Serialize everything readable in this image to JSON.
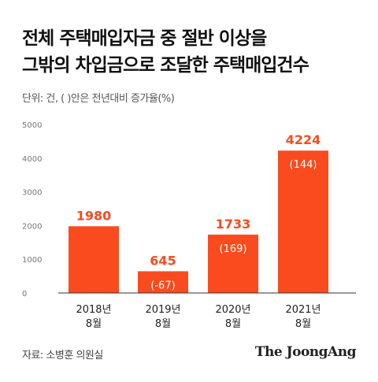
{
  "title_lines": [
    "전체 주택매입자금 중 절반 이상을",
    "그밖의 차입금으로 조달한 주택매입건수"
  ],
  "unit_note": "단위: 건, ( )안은 전년대비 증가율(%)",
  "source": "자료: 소병훈 의원실",
  "logo": "The JoongAng",
  "colors": {
    "bar": "#fa4b1e",
    "value_label": "#fa4b1e",
    "paren_label": "#ffffff",
    "axis": "#333333",
    "tick": "#777777"
  },
  "chart_data": {
    "type": "bar",
    "title": "전체 주택매입자금 중 절반 이상을 그밖의 차입금으로 조달한 주택매입건수",
    "categories": [
      [
        "2018년",
        "8월"
      ],
      [
        "2019년",
        "8월"
      ],
      [
        "2020년",
        "8월"
      ],
      [
        "2021년",
        "8월"
      ]
    ],
    "values": [
      1980,
      645,
      1733,
      4224
    ],
    "value_labels": [
      "1980",
      "645",
      "1733",
      "4224"
    ],
    "change_labels": [
      "",
      "(-67)",
      "(169)",
      "(144)"
    ],
    "yticks": [
      "5000",
      "4000",
      "3000",
      "2000",
      "1000",
      "0"
    ],
    "ylim": [
      0,
      5000
    ],
    "grid": false
  }
}
